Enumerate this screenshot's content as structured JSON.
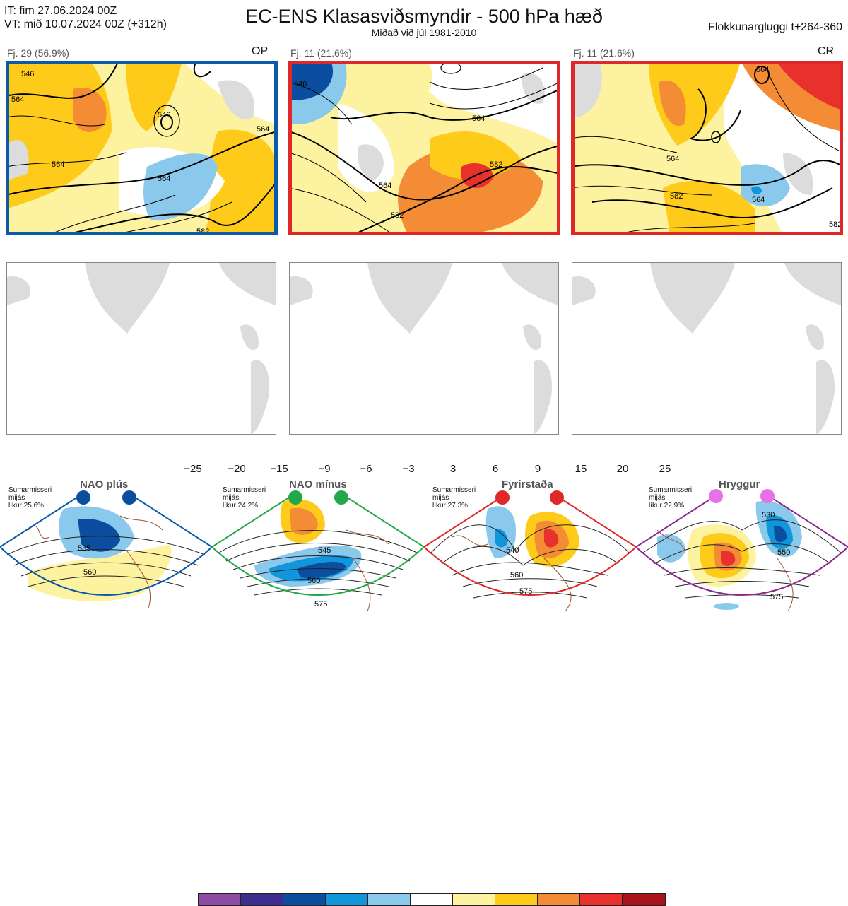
{
  "header": {
    "it_line": "IT: fim 27.06.2024 00Z",
    "vt_line": "VT: mið 10.07.2024 00Z  (+312h)",
    "title": "EC-ENS Klasasviðsmyndir - 500 hPa hæð",
    "subtitle": "Miðað við júl 1981-2010",
    "window_label": "Flokkunargluggi t+264-360"
  },
  "clusters": [
    {
      "label": "Fj. 29 (56.9%)",
      "tag": "OP",
      "border_color": "#0a5aa8",
      "contour_labels": [
        "546",
        "564",
        "546",
        "564",
        "564",
        "564",
        "582"
      ]
    },
    {
      "label": "Fj. 11 (21.6%)",
      "tag": "",
      "border_color": "#e02828",
      "contour_labels": [
        "546",
        "564",
        "564",
        "582",
        "582"
      ]
    },
    {
      "label": "Fj. 11 (21.6%)",
      "tag": "CR",
      "border_color": "#e02828",
      "contour_labels": [
        "564",
        "564",
        "564",
        "582",
        "582"
      ]
    }
  ],
  "colorbar": {
    "ticks": [
      "−25",
      "−20",
      "−15",
      "−9",
      "−6",
      "−3",
      "3",
      "6",
      "9",
      "15",
      "20",
      "25"
    ],
    "colors": [
      "#8e4ba3",
      "#3e2c8f",
      "#0b4ea0",
      "#1196db",
      "#8bc9ec",
      "#ffffff",
      "#fdf2a0",
      "#fecb1a",
      "#f48c35",
      "#e8302d",
      "#a81218"
    ]
  },
  "regimes": [
    {
      "name": "NAO plús",
      "season": "Sumarmisseri",
      "mean": "mijás",
      "prob": "líkur 25,6%",
      "dot_color": "#0a4e9e",
      "frame_color": "#0a5aa8",
      "contours": [
        "535",
        "560"
      ]
    },
    {
      "name": "NAO mínus",
      "season": "Sumarmisseri",
      "mean": "mijás",
      "prob": "líkur 24,2%",
      "dot_color": "#22a84a",
      "frame_color": "#22a84a",
      "contours": [
        "545",
        "560",
        "575"
      ]
    },
    {
      "name": "Fyrirstaða",
      "season": "Sumarmisseri",
      "mean": "mijás",
      "prob": "líkur 27,3%",
      "dot_color": "#e02828",
      "frame_color": "#e02828",
      "contours": [
        "540",
        "560",
        "575"
      ]
    },
    {
      "name": "Hryggur",
      "season": "Sumarmisseri",
      "mean": "mijás",
      "prob": "líkur 22,9%",
      "dot_color": "#e870e8",
      "frame_color": "#8a2a8a",
      "contours": [
        "530",
        "550",
        "575"
      ]
    }
  ]
}
